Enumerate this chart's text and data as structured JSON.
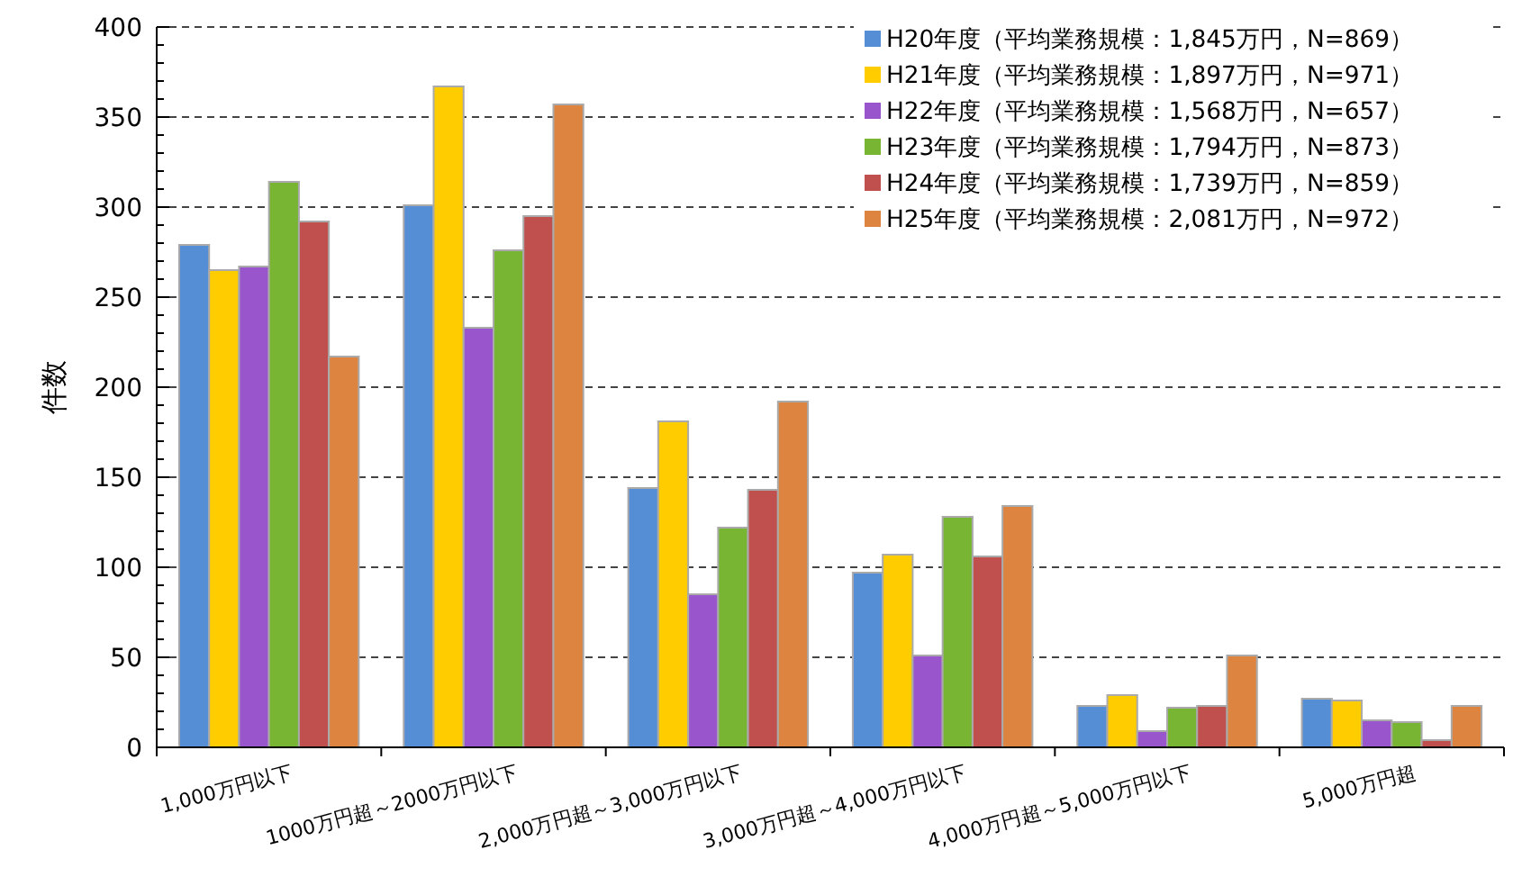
{
  "chart_data": {
    "type": "bar",
    "ylabel": "件数",
    "categories": [
      "1,000万円以下",
      "1000万円超～2000万円以下",
      "2,000万円超～3,000万円以下",
      "3,000万円超～4,000万円以下",
      "4,000万円超～5,000万円以下",
      "5,000万円超"
    ],
    "series": [
      {
        "name": "H20年度（平均業務規模：1,845万円，N=869）",
        "color": "#558ed5",
        "values": [
          279,
          301,
          144,
          97,
          23,
          27
        ]
      },
      {
        "name": "H21年度（平均業務規模：1,897万円，N=971）",
        "color": "#ffcc00",
        "values": [
          265,
          367,
          181,
          107,
          29,
          26
        ]
      },
      {
        "name": "H22年度（平均業務規模：1,568万円，N=657）",
        "color": "#9955cc",
        "values": [
          267,
          233,
          85,
          51,
          9,
          15
        ]
      },
      {
        "name": "H23年度（平均業務規模：1,794万円，N=873）",
        "color": "#77b533",
        "values": [
          314,
          276,
          122,
          128,
          22,
          14
        ]
      },
      {
        "name": "H24年度（平均業務規模：1,739万円，N=859）",
        "color": "#c0504d",
        "values": [
          292,
          295,
          143,
          106,
          23,
          4
        ]
      },
      {
        "name": "H25年度（平均業務規模：2,081万円，N=972）",
        "color": "#dd8440",
        "values": [
          217,
          357,
          192,
          134,
          51,
          23
        ]
      }
    ],
    "ylim": [
      0,
      400
    ],
    "yticks": [
      0,
      50,
      100,
      150,
      200,
      250,
      300,
      350,
      400
    ],
    "grid": "y",
    "legend": "top right"
  }
}
